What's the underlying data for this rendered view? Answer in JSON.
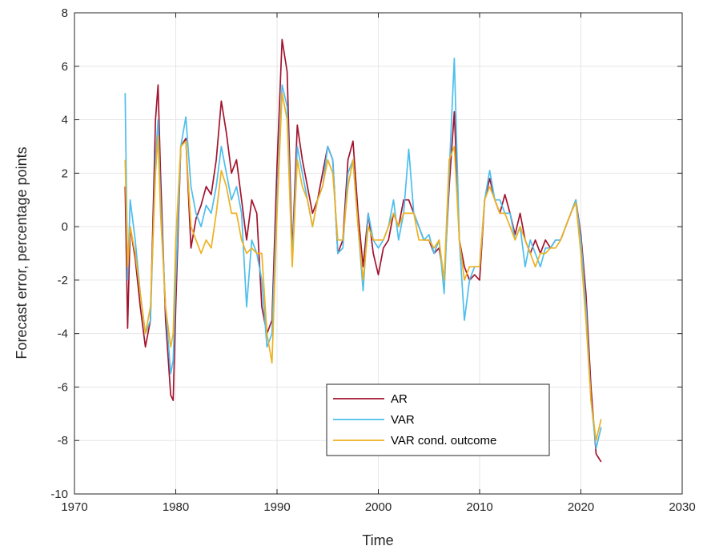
{
  "chart_data": {
    "type": "line",
    "title": "",
    "xlabel": "Time",
    "ylabel": "Forecast error, percentage points",
    "xlim": [
      1970,
      2030
    ],
    "ylim": [
      -10,
      8
    ],
    "xticks": [
      1970,
      1980,
      1990,
      2000,
      2010,
      2020,
      2030
    ],
    "yticks": [
      -10,
      -8,
      -6,
      -4,
      -2,
      0,
      2,
      4,
      6,
      8
    ],
    "grid": true,
    "legend_position": "lower-center",
    "series": [
      {
        "name": "AR",
        "color": "#a2142f",
        "x": [
          1975.0,
          1975.25,
          1975.5,
          1976.0,
          1976.5,
          1977.0,
          1977.5,
          1978.0,
          1978.25,
          1978.5,
          1979.0,
          1979.5,
          1979.75,
          1980.0,
          1980.5,
          1981.0,
          1981.5,
          1982.0,
          1982.5,
          1983.0,
          1983.5,
          1984.0,
          1984.5,
          1985.0,
          1985.5,
          1986.0,
          1986.5,
          1987.0,
          1987.5,
          1988.0,
          1988.5,
          1989.0,
          1989.5,
          1990.0,
          1990.5,
          1991.0,
          1991.5,
          1992.0,
          1992.5,
          1993.0,
          1993.5,
          1994.0,
          1994.5,
          1995.0,
          1995.5,
          1996.0,
          1996.5,
          1997.0,
          1997.5,
          1998.0,
          1998.5,
          1999.0,
          1999.5,
          2000.0,
          2000.5,
          2001.0,
          2001.5,
          2002.0,
          2002.5,
          2003.0,
          2003.5,
          2004.0,
          2004.5,
          2005.0,
          2005.5,
          2006.0,
          2006.5,
          2007.0,
          2007.5,
          2008.0,
          2008.5,
          2009.0,
          2009.5,
          2010.0,
          2010.5,
          2011.0,
          2011.5,
          2012.0,
          2012.5,
          2013.0,
          2013.5,
          2014.0,
          2014.5,
          2015.0,
          2015.5,
          2016.0,
          2016.5,
          2017.0,
          2017.5,
          2018.0,
          2018.5,
          2019.0,
          2019.5,
          2020.0,
          2020.5,
          2021.0,
          2021.5,
          2022.0
        ],
        "y": [
          1.5,
          -3.8,
          0.0,
          -1.2,
          -3.0,
          -4.5,
          -3.5,
          4.0,
          5.3,
          2.0,
          -3.5,
          -6.3,
          -6.5,
          -3.0,
          3.0,
          3.3,
          -0.8,
          0.3,
          0.8,
          1.5,
          1.2,
          2.5,
          4.7,
          3.5,
          2.0,
          2.5,
          1.0,
          -0.5,
          1.0,
          0.5,
          -3.0,
          -4.0,
          -3.5,
          2.3,
          7.0,
          5.8,
          -1.0,
          3.8,
          2.5,
          1.5,
          0.5,
          1.0,
          2.0,
          3.0,
          2.5,
          -1.0,
          -0.5,
          2.5,
          3.2,
          0.5,
          -1.5,
          0.5,
          -1.0,
          -1.8,
          -0.8,
          -0.5,
          0.5,
          0.0,
          1.0,
          1.0,
          0.5,
          0.0,
          -0.5,
          -0.5,
          -1.0,
          -0.8,
          -2.0,
          1.5,
          4.3,
          -0.5,
          -1.5,
          -2.0,
          -1.8,
          -2.0,
          1.0,
          1.8,
          1.0,
          0.5,
          1.2,
          0.5,
          -0.3,
          0.5,
          -0.5,
          -1.0,
          -0.5,
          -1.0,
          -0.5,
          -0.8,
          -0.5,
          -0.5,
          0.0,
          0.5,
          1.0,
          -0.3,
          -2.5,
          -6.0,
          -8.5,
          -8.8
        ]
      },
      {
        "name": "VAR",
        "color": "#4dbeee",
        "x": [
          1975.0,
          1975.25,
          1975.5,
          1976.0,
          1976.5,
          1977.0,
          1977.5,
          1978.0,
          1978.25,
          1978.5,
          1979.0,
          1979.5,
          1979.75,
          1980.0,
          1980.5,
          1981.0,
          1981.5,
          1982.0,
          1982.5,
          1983.0,
          1983.5,
          1984.0,
          1984.5,
          1985.0,
          1985.5,
          1986.0,
          1986.5,
          1987.0,
          1987.5,
          1988.0,
          1988.5,
          1989.0,
          1989.5,
          1990.0,
          1990.5,
          1991.0,
          1991.5,
          1992.0,
          1992.5,
          1993.0,
          1993.5,
          1994.0,
          1994.5,
          1995.0,
          1995.5,
          1996.0,
          1996.5,
          1997.0,
          1997.5,
          1998.0,
          1998.5,
          1999.0,
          1999.5,
          2000.0,
          2000.5,
          2001.0,
          2001.5,
          2002.0,
          2002.5,
          2003.0,
          2003.5,
          2004.0,
          2004.5,
          2005.0,
          2005.5,
          2006.0,
          2006.5,
          2007.0,
          2007.5,
          2008.0,
          2008.5,
          2009.0,
          2009.5,
          2010.0,
          2010.5,
          2011.0,
          2011.5,
          2012.0,
          2012.5,
          2013.0,
          2013.5,
          2014.0,
          2014.5,
          2015.0,
          2015.5,
          2016.0,
          2016.5,
          2017.0,
          2017.5,
          2018.0,
          2018.5,
          2019.0,
          2019.5,
          2020.0,
          2020.5,
          2021.0,
          2021.5,
          2022.0
        ],
        "y": [
          5.0,
          -2.0,
          1.0,
          -0.5,
          -2.5,
          -4.0,
          -3.5,
          2.5,
          4.0,
          1.0,
          -3.0,
          -5.5,
          -5.0,
          -2.0,
          3.0,
          4.1,
          1.5,
          0.5,
          0.0,
          0.8,
          0.5,
          1.5,
          3.0,
          2.0,
          1.0,
          1.5,
          0.5,
          -3.0,
          -0.5,
          -1.0,
          -2.0,
          -4.5,
          -4.0,
          1.0,
          5.3,
          4.5,
          -1.2,
          3.0,
          2.0,
          1.0,
          0.0,
          1.0,
          1.5,
          3.0,
          2.5,
          -1.0,
          -0.8,
          2.0,
          2.5,
          0.0,
          -2.4,
          0.5,
          -0.5,
          -0.8,
          -0.5,
          0.0,
          1.0,
          -0.5,
          0.5,
          2.9,
          0.5,
          0.0,
          -0.5,
          -0.3,
          -1.0,
          -0.5,
          -2.5,
          2.0,
          6.3,
          -0.5,
          -3.5,
          -2.0,
          -1.5,
          -1.5,
          1.0,
          2.1,
          1.0,
          1.0,
          0.5,
          0.5,
          -0.5,
          0.0,
          -1.5,
          -0.5,
          -1.0,
          -1.5,
          -0.8,
          -0.8,
          -0.5,
          -0.5,
          0.0,
          0.5,
          1.0,
          -0.5,
          -3.0,
          -6.5,
          -8.3,
          -7.5
        ]
      },
      {
        "name": "VAR cond. outcome",
        "color": "#edb120",
        "x": [
          1975.0,
          1975.25,
          1975.5,
          1976.0,
          1976.5,
          1977.0,
          1977.5,
          1978.0,
          1978.25,
          1978.5,
          1979.0,
          1979.5,
          1979.75,
          1980.0,
          1980.5,
          1981.0,
          1981.5,
          1982.0,
          1982.5,
          1983.0,
          1983.5,
          1984.0,
          1984.5,
          1985.0,
          1985.5,
          1986.0,
          1986.5,
          1987.0,
          1987.5,
          1988.0,
          1988.5,
          1989.0,
          1989.5,
          1990.0,
          1990.5,
          1991.0,
          1991.5,
          1992.0,
          1992.5,
          1993.0,
          1993.5,
          1994.0,
          1994.5,
          1995.0,
          1995.5,
          1996.0,
          1996.5,
          1997.0,
          1997.5,
          1998.0,
          1998.5,
          1999.0,
          1999.5,
          2000.0,
          2000.5,
          2001.0,
          2001.5,
          2002.0,
          2002.5,
          2003.0,
          2003.5,
          2004.0,
          2004.5,
          2005.0,
          2005.5,
          2006.0,
          2006.5,
          2007.0,
          2007.5,
          2008.0,
          2008.5,
          2009.0,
          2009.5,
          2010.0,
          2010.5,
          2011.0,
          2011.5,
          2012.0,
          2012.5,
          2013.0,
          2013.5,
          2014.0,
          2014.5,
          2015.0,
          2015.5,
          2016.0,
          2016.5,
          2017.0,
          2017.5,
          2018.0,
          2018.5,
          2019.0,
          2019.5,
          2020.0,
          2020.5,
          2021.0,
          2021.5,
          2022.0
        ],
        "y": [
          2.5,
          -1.5,
          0.0,
          -1.0,
          -2.5,
          -4.0,
          -3.0,
          2.0,
          3.4,
          0.5,
          -3.0,
          -4.5,
          -4.0,
          -0.5,
          3.0,
          3.2,
          0.0,
          -0.5,
          -1.0,
          -0.5,
          -0.8,
          0.5,
          2.1,
          1.5,
          0.5,
          0.5,
          -0.5,
          -1.0,
          -0.8,
          -1.0,
          -1.0,
          -4.0,
          -5.1,
          0.5,
          5.0,
          4.0,
          -1.5,
          2.5,
          1.5,
          1.0,
          0.0,
          1.0,
          1.5,
          2.5,
          2.0,
          -0.5,
          -0.5,
          1.5,
          2.5,
          0.0,
          -2.0,
          0.0,
          -0.5,
          -0.5,
          -0.5,
          0.0,
          0.5,
          0.0,
          0.5,
          0.5,
          0.5,
          -0.5,
          -0.5,
          -0.5,
          -0.8,
          -0.5,
          -2.0,
          2.5,
          3.0,
          -0.5,
          -2.0,
          -1.5,
          -1.5,
          -1.5,
          1.0,
          1.5,
          1.0,
          0.5,
          0.5,
          0.0,
          -0.5,
          0.0,
          -0.5,
          -1.0,
          -1.5,
          -1.0,
          -1.0,
          -0.8,
          -0.8,
          -0.5,
          0.0,
          0.5,
          0.9,
          -1.0,
          -3.5,
          -6.5,
          -8.0,
          -7.2
        ]
      }
    ]
  }
}
